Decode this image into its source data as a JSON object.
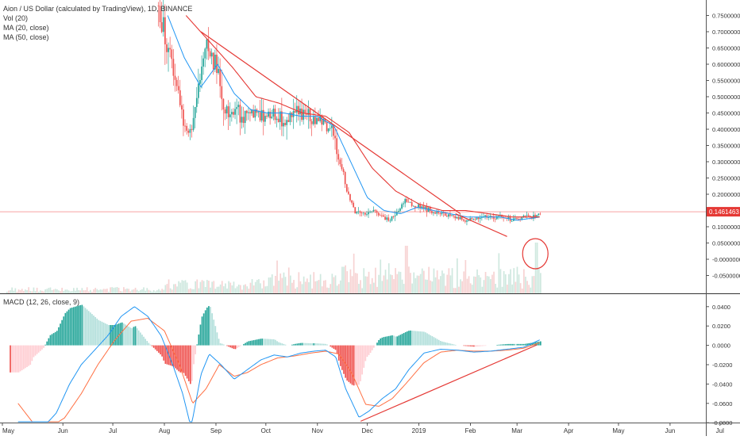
{
  "title": "Aion / US Dollar (calculated by TradingView), 1D, BINANCE",
  "legend_lines": [
    "Vol (20)",
    "MA (20, close)",
    "MA (50, close)"
  ],
  "macd_title": "MACD (12, 26, close, 9)",
  "colors": {
    "up": "#26a69a",
    "down": "#ef5350",
    "vol_up": "#cfe8df",
    "vol_down": "#f7d3d3",
    "ma20": "#2196f3",
    "ma50": "#e53935",
    "trend": "#e53935",
    "price_line": "#f8a3a3",
    "macd_line": "#2196f3",
    "signal_line": "#ff7043",
    "hist_up_strong": "#26a69a",
    "hist_up_weak": "#b2dfdb",
    "hist_down_strong": "#ef5350",
    "hist_down_weak": "#ffcdd2"
  },
  "current_price_label": "0.1461463",
  "chart_data": [
    {
      "type": "candlestick",
      "title": "Aion / US Dollar (calculated by TradingView), 1D, BINANCE",
      "price_axis_ticks": [
        "0.7500000",
        "0.7000000",
        "0.6500000",
        "0.6000000",
        "0.5500000",
        "0.5000000",
        "0.4500000",
        "0.4000000",
        "0.3500000",
        "0.3000000",
        "0.2500000",
        "0.2000000",
        "0.1500000",
        "0.1000000",
        "0.0500000",
        "-0.0000000",
        "-0.0500000"
      ],
      "x_axis_ticks": [
        "May",
        "Jun",
        "Jul",
        "Aug",
        "Sep",
        "Oct",
        "Nov",
        "Dec",
        "2019",
        "Feb",
        "Mar",
        "Apr",
        "May",
        "Jun",
        "Jul"
      ],
      "series": [
        {
          "name": "Vol (20)"
        },
        {
          "name": "MA (20, close)"
        },
        {
          "name": "MA (50, close)"
        }
      ],
      "price_path": [
        [
          "2018-07-28",
          0.78
        ],
        [
          "2018-08-02",
          0.66
        ],
        [
          "2018-08-07",
          0.56
        ],
        [
          "2018-08-12",
          0.41
        ],
        [
          "2018-08-16",
          0.38
        ],
        [
          "2018-08-21",
          0.51
        ],
        [
          "2018-08-26",
          0.66
        ],
        [
          "2018-09-01",
          0.6
        ],
        [
          "2018-09-06",
          0.46
        ],
        [
          "2018-09-12",
          0.45
        ],
        [
          "2018-09-18",
          0.44
        ],
        [
          "2018-09-24",
          0.45
        ],
        [
          "2018-09-30",
          0.44
        ],
        [
          "2018-10-06",
          0.45
        ],
        [
          "2018-10-12",
          0.43
        ],
        [
          "2018-10-18",
          0.46
        ],
        [
          "2018-10-24",
          0.44
        ],
        [
          "2018-10-30",
          0.43
        ],
        [
          "2018-11-04",
          0.42
        ],
        [
          "2018-11-09",
          0.39
        ],
        [
          "2018-11-14",
          0.31
        ],
        [
          "2018-11-19",
          0.2
        ],
        [
          "2018-11-24",
          0.14
        ],
        [
          "2018-11-29",
          0.14
        ],
        [
          "2018-12-04",
          0.15
        ],
        [
          "2018-12-09",
          0.13
        ],
        [
          "2018-12-14",
          0.12
        ],
        [
          "2018-12-19",
          0.15
        ],
        [
          "2018-12-24",
          0.18
        ],
        [
          "2018-12-29",
          0.16
        ],
        [
          "2019-01-04",
          0.16
        ],
        [
          "2019-01-10",
          0.14
        ],
        [
          "2019-01-16",
          0.14
        ],
        [
          "2019-01-22",
          0.13
        ],
        [
          "2019-01-28",
          0.12
        ],
        [
          "2019-02-03",
          0.12
        ],
        [
          "2019-02-09",
          0.13
        ],
        [
          "2019-02-15",
          0.13
        ],
        [
          "2019-02-21",
          0.13
        ],
        [
          "2019-02-27",
          0.12
        ],
        [
          "2019-03-05",
          0.13
        ],
        [
          "2019-03-11",
          0.13
        ],
        [
          "2019-03-15",
          0.15
        ]
      ],
      "ma20_path": [
        [
          "2018-08-03",
          0.75
        ],
        [
          "2018-08-13",
          0.62
        ],
        [
          "2018-08-23",
          0.53
        ],
        [
          "2018-09-02",
          0.6
        ],
        [
          "2018-09-12",
          0.51
        ],
        [
          "2018-09-22",
          0.46
        ],
        [
          "2018-10-02",
          0.45
        ],
        [
          "2018-10-12",
          0.45
        ],
        [
          "2018-10-22",
          0.44
        ],
        [
          "2018-11-01",
          0.44
        ],
        [
          "2018-11-11",
          0.41
        ],
        [
          "2018-11-21",
          0.3
        ],
        [
          "2018-12-01",
          0.19
        ],
        [
          "2018-12-11",
          0.15
        ],
        [
          "2018-12-21",
          0.14
        ],
        [
          "2018-12-31",
          0.16
        ],
        [
          "2019-01-10",
          0.15
        ],
        [
          "2019-01-20",
          0.14
        ],
        [
          "2019-01-30",
          0.13
        ],
        [
          "2019-02-09",
          0.13
        ],
        [
          "2019-02-19",
          0.13
        ],
        [
          "2019-03-01",
          0.12
        ],
        [
          "2019-03-15",
          0.13
        ]
      ],
      "ma50_path": [
        [
          "2018-08-14",
          0.75
        ],
        [
          "2018-08-28",
          0.67
        ],
        [
          "2018-09-11",
          0.59
        ],
        [
          "2018-09-25",
          0.5
        ],
        [
          "2018-10-09",
          0.48
        ],
        [
          "2018-10-23",
          0.45
        ],
        [
          "2018-11-06",
          0.44
        ],
        [
          "2018-11-20",
          0.39
        ],
        [
          "2018-12-04",
          0.28
        ],
        [
          "2018-12-18",
          0.21
        ],
        [
          "2019-01-01",
          0.17
        ],
        [
          "2019-01-15",
          0.15
        ],
        [
          "2019-01-29",
          0.15
        ],
        [
          "2019-02-12",
          0.14
        ],
        [
          "2019-02-26",
          0.13
        ],
        [
          "2019-03-15",
          0.13
        ]
      ],
      "annotations": [
        {
          "kind": "trend_line",
          "from": [
            "2018-08-23",
            0.7
          ],
          "to": [
            "2019-01-26",
            0.14
          ]
        },
        {
          "kind": "trend_line",
          "from": [
            "2019-01-23",
            0.14
          ],
          "to": [
            "2019-02-23",
            0.07
          ]
        },
        {
          "kind": "horizontal_line",
          "value": 0.1461463
        },
        {
          "kind": "circle",
          "note": "volume spike in mid-March 2019"
        }
      ]
    },
    {
      "type": "macd",
      "title": "MACD (12, 26, close, 9)",
      "y_axis_ticks": [
        "0.0400",
        "0.0200",
        "0.0000",
        "-0.0200",
        "-0.0400",
        "-0.0600",
        "-0.0800"
      ],
      "ylim": [
        -0.08,
        0.045
      ],
      "annotations": [
        {
          "kind": "trend_line",
          "from": [
            "2018-11-27",
            -0.0785
          ],
          "to": [
            "2019-03-13",
            0.0005
          ]
        }
      ]
    }
  ]
}
